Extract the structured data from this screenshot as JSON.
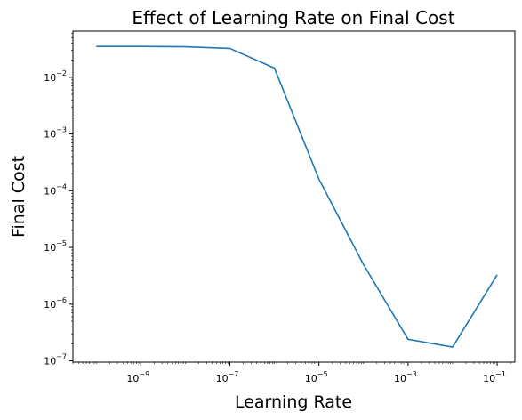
{
  "chart_data": {
    "type": "line",
    "title": "Effect of Learning Rate on Final Cost",
    "xlabel": "Learning Rate",
    "ylabel": "Final Cost",
    "xscale": "log",
    "yscale": "log",
    "xlim": [
      3e-11,
      0.25
    ],
    "ylim": [
      9.5e-08,
      0.065
    ],
    "xticks": [
      {
        "value": 1e-09,
        "base": "10",
        "exp": "−9"
      },
      {
        "value": 1e-07,
        "base": "10",
        "exp": "−7"
      },
      {
        "value": 1e-05,
        "base": "10",
        "exp": "−5"
      },
      {
        "value": 0.001,
        "base": "10",
        "exp": "−3"
      },
      {
        "value": 0.1,
        "base": "10",
        "exp": "−1"
      }
    ],
    "yticks": [
      {
        "value": 1e-07,
        "base": "10",
        "exp": "−7"
      },
      {
        "value": 1e-06,
        "base": "10",
        "exp": "−6"
      },
      {
        "value": 1e-05,
        "base": "10",
        "exp": "−5"
      },
      {
        "value": 0.0001,
        "base": "10",
        "exp": "−4"
      },
      {
        "value": 0.001,
        "base": "10",
        "exp": "−3"
      },
      {
        "value": 0.01,
        "base": "10",
        "exp": "−2"
      }
    ],
    "grid": false,
    "series": [
      {
        "color": "#1f77b4",
        "points": [
          {
            "x": 1e-10,
            "y": 0.035
          },
          {
            "x": 1e-09,
            "y": 0.035
          },
          {
            "x": 1e-08,
            "y": 0.0345
          },
          {
            "x": 1e-07,
            "y": 0.0322
          },
          {
            "x": 1e-06,
            "y": 0.0145
          },
          {
            "x": 1e-05,
            "y": 0.00016
          },
          {
            "x": 0.0001,
            "y": 5e-06
          },
          {
            "x": 0.001,
            "y": 2.4e-07
          },
          {
            "x": 0.01,
            "y": 1.75e-07
          },
          {
            "x": 0.1,
            "y": 3.3e-06
          }
        ]
      }
    ]
  }
}
